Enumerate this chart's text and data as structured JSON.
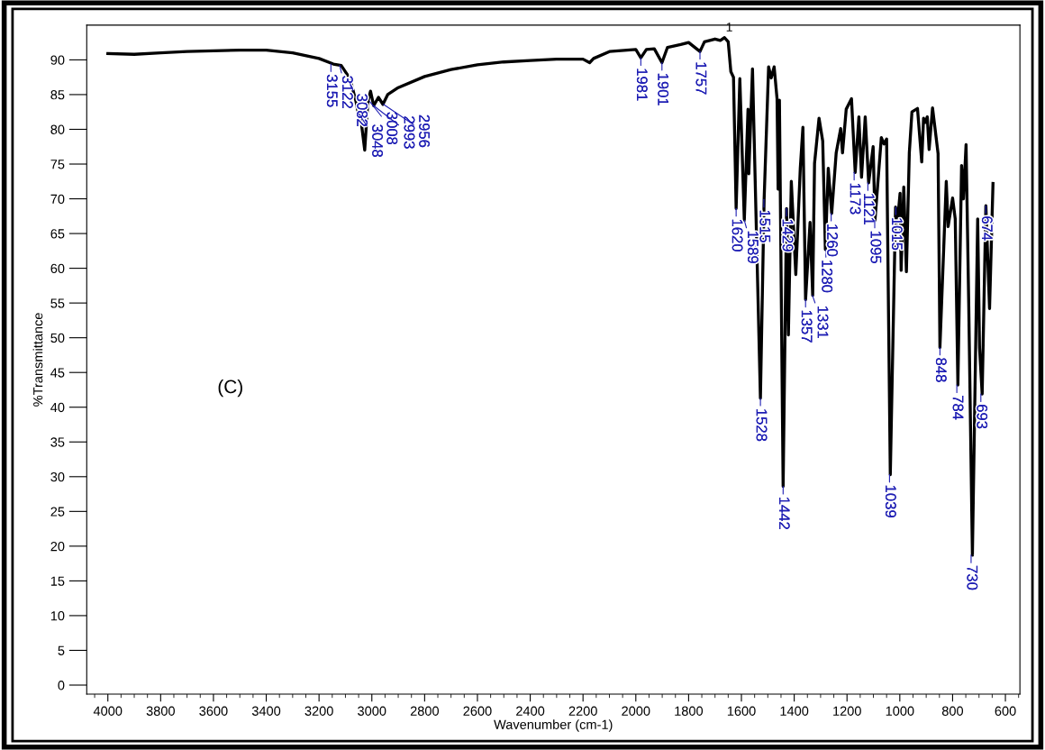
{
  "chart_data": {
    "type": "line",
    "xlabel": "Wavenumber (cm-1)",
    "ylabel": "%Transmittance",
    "xlim": [
      4080,
      545
    ],
    "ylim": [
      -1.3,
      95
    ],
    "xticks": [
      4000,
      3800,
      3600,
      3400,
      3200,
      3000,
      2800,
      2600,
      2400,
      2200,
      2000,
      1800,
      1600,
      1400,
      1200,
      1000,
      800,
      600
    ],
    "yticks": [
      0,
      5,
      10,
      15,
      20,
      25,
      30,
      35,
      40,
      45,
      50,
      55,
      60,
      65,
      70,
      75,
      80,
      85,
      90
    ],
    "grid": false,
    "legend": false,
    "marker": "none",
    "line_style": "solid",
    "series": [
      {
        "color": "#000000",
        "x": [
          4000,
          3900,
          3800,
          3700,
          3600,
          3500,
          3400,
          3300,
          3200,
          3146,
          3116,
          3095,
          3078,
          3060,
          3051,
          3040,
          3027,
          3015,
          3005,
          2993,
          2975,
          2958,
          2940,
          2900,
          2800,
          2700,
          2600,
          2500,
          2400,
          2300,
          2200,
          2175,
          2160,
          2100,
          2000,
          1981,
          1960,
          1930,
          1901,
          1880,
          1830,
          1800,
          1757,
          1740,
          1700,
          1680,
          1664,
          1650,
          1640,
          1630,
          1620,
          1606,
          1589,
          1575,
          1572,
          1558,
          1528,
          1514,
          1497,
          1487,
          1476,
          1465,
          1461,
          1456,
          1442,
          1429,
          1422,
          1411,
          1394,
          1377,
          1367,
          1357,
          1340,
          1330,
          1323,
          1306,
          1292,
          1282,
          1271,
          1258,
          1241,
          1224,
          1217,
          1203,
          1183,
          1169,
          1155,
          1145,
          1131,
          1118,
          1101,
          1094,
          1070,
          1060,
          1050,
          1036,
          1016,
          1009,
          999,
          995,
          985,
          975,
          964,
          954,
          933,
          917,
          910,
          903,
          896,
          889,
          876,
          855,
          848,
          824,
          817,
          800,
          790,
          780,
          766,
          759,
          749,
          739,
          725,
          705,
          698,
          688,
          674,
          660,
          647
        ],
        "values": [
          90.9,
          90.8,
          91.0,
          91.2,
          91.3,
          91.4,
          91.4,
          91.0,
          90.2,
          89.4,
          89.2,
          88.0,
          86.6,
          84.0,
          82.2,
          81.0,
          77.0,
          84.0,
          85.5,
          83.4,
          84.6,
          83.6,
          85.0,
          86.0,
          87.6,
          88.6,
          89.3,
          89.7,
          89.9,
          90.1,
          90.1,
          89.6,
          90.2,
          91.2,
          91.5,
          90.3,
          91.5,
          91.6,
          89.6,
          91.8,
          92.2,
          92.5,
          91.2,
          92.6,
          93.0,
          92.8,
          93.2,
          92.6,
          88.3,
          87.5,
          68.6,
          87.3,
          66.9,
          82.9,
          73.6,
          88.7,
          41.3,
          69.9,
          89.0,
          87.4,
          89.0,
          84.4,
          71.4,
          84.2,
          28.6,
          68.6,
          50.4,
          72.5,
          59.1,
          74.4,
          80.3,
          55.5,
          66.6,
          56.1,
          75.1,
          81.6,
          78.3,
          62.7,
          74.4,
          67.9,
          76.6,
          80.1,
          76.6,
          82.9,
          84.4,
          73.8,
          81.8,
          73.1,
          81.8,
          72.3,
          77.5,
          66.9,
          78.8,
          77.9,
          78.6,
          30.3,
          68.8,
          66.6,
          70.8,
          59.7,
          71.7,
          59.5,
          76.6,
          82.5,
          83.0,
          75.3,
          81.6,
          81.0,
          81.8,
          77.1,
          83.1,
          76.5,
          48.6,
          72.5,
          66.0,
          70.1,
          67.1,
          43.2,
          74.8,
          70.0,
          77.8,
          55.1,
          18.7,
          67.1,
          48.6,
          41.9,
          69.0,
          54.2,
          72.2
        ]
      }
    ],
    "annotations": [
      "(C)",
      {
        "text": "1",
        "x": 1664,
        "y": 93.2
      },
      {
        "text": "3155",
        "x": 3155,
        "y": 89.4
      },
      {
        "text": "3122",
        "x": 3122,
        "y": 89.2
      },
      {
        "text": "3082",
        "x": 3082,
        "y": 86.6
      },
      {
        "text": "3048",
        "x": 3048,
        "y": 82.2
      },
      {
        "text": "3008",
        "x": 3008,
        "y": 84.0
      },
      {
        "text": "2993",
        "x": 2993,
        "y": 83.4
      },
      {
        "text": "2956",
        "x": 2956,
        "y": 83.6
      },
      {
        "text": "1981",
        "x": 1981,
        "y": 90.3
      },
      {
        "text": "1901",
        "x": 1901,
        "y": 89.6
      },
      {
        "text": "1757",
        "x": 1757,
        "y": 91.2
      },
      {
        "text": "1620",
        "x": 1620,
        "y": 68.6
      },
      {
        "text": "1589",
        "x": 1589,
        "y": 66.9
      },
      {
        "text": "1528",
        "x": 1528,
        "y": 41.3
      },
      {
        "text": "1515",
        "x": 1515,
        "y": 69.9
      },
      {
        "text": "1442",
        "x": 1442,
        "y": 28.6
      },
      {
        "text": "1429",
        "x": 1429,
        "y": 68.6
      },
      {
        "text": "1357",
        "x": 1357,
        "y": 55.5
      },
      {
        "text": "1331",
        "x": 1331,
        "y": 56.1
      },
      {
        "text": "1280",
        "x": 1280,
        "y": 62.7
      },
      {
        "text": "1260",
        "x": 1260,
        "y": 67.9
      },
      {
        "text": "1173",
        "x": 1173,
        "y": 73.8
      },
      {
        "text": "1121",
        "x": 1121,
        "y": 72.3
      },
      {
        "text": "1095",
        "x": 1095,
        "y": 66.9
      },
      {
        "text": "1039",
        "x": 1039,
        "y": 30.3
      },
      {
        "text": "1015",
        "x": 1015,
        "y": 68.8
      },
      {
        "text": "848",
        "x": 848,
        "y": 48.6
      },
      {
        "text": "784",
        "x": 784,
        "y": 43.2
      },
      {
        "text": "730",
        "x": 730,
        "y": 18.7
      },
      {
        "text": "693",
        "x": 693,
        "y": 41.9
      },
      {
        "text": "674",
        "x": 674,
        "y": 69.0
      }
    ]
  }
}
